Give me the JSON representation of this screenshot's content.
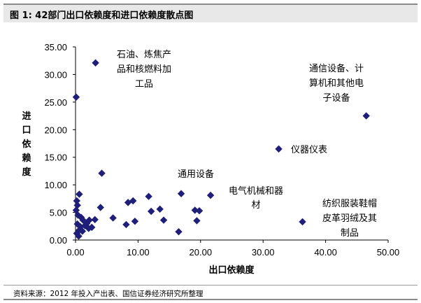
{
  "figure": {
    "title": "图 1:  42部门出口依赖度和进口依赖度散点图",
    "source": "资料来源：2012 年投入产出表、国信证券经济研究所整理"
  },
  "chart_data": {
    "type": "scatter",
    "title": "",
    "xlabel": "出口依赖度",
    "ylabel": "进口依赖度",
    "xlim": [
      0,
      50
    ],
    "ylim": [
      0,
      35
    ],
    "xticks": [
      "0.00",
      "10.00",
      "20.00",
      "30.00",
      "40.00",
      "50.00"
    ],
    "yticks": [
      "0.00",
      "5.00",
      "10.00",
      "15.00",
      "20.00",
      "25.00",
      "30.00",
      "35.00"
    ],
    "grid": false,
    "marker_color": "#1f1f7a",
    "series": [
      {
        "points": [
          [
            0.1,
            25.9
          ],
          [
            3.2,
            32.1
          ],
          [
            46.5,
            22.5
          ],
          [
            32.5,
            16.5
          ],
          [
            4.2,
            12.1
          ],
          [
            0.6,
            8.3
          ],
          [
            0.2,
            7.1
          ],
          [
            0.3,
            6.3
          ],
          [
            4.0,
            5.9
          ],
          [
            0.1,
            5.4
          ],
          [
            0.4,
            4.5
          ],
          [
            0.9,
            4.1
          ],
          [
            1.2,
            3.6
          ],
          [
            2.2,
            3.6
          ],
          [
            3.1,
            3.7
          ],
          [
            0.3,
            2.9
          ],
          [
            0.8,
            2.4
          ],
          [
            1.5,
            2.6
          ],
          [
            2.6,
            2.3
          ],
          [
            0.6,
            1.8
          ],
          [
            1.1,
            1.6
          ],
          [
            0.2,
            1.2
          ],
          [
            0.5,
            0.7
          ],
          [
            1.8,
            3.0
          ],
          [
            2.1,
            2.1
          ],
          [
            6.0,
            4.0
          ],
          [
            8.1,
            2.8
          ],
          [
            8.4,
            6.8
          ],
          [
            9.2,
            7.1
          ],
          [
            9.5,
            3.4
          ],
          [
            11.7,
            7.9
          ],
          [
            12.1,
            5.2
          ],
          [
            13.5,
            5.6
          ],
          [
            14.1,
            3.6
          ],
          [
            16.5,
            1.5
          ],
          [
            16.9,
            8.4
          ],
          [
            19.1,
            5.4
          ],
          [
            19.4,
            3.5
          ],
          [
            19.8,
            5.3
          ],
          [
            21.6,
            8.1
          ],
          [
            36.3,
            3.3
          ]
        ]
      }
    ],
    "annotations": [
      {
        "lines": [
          "石油、炼焦产",
          "品和核燃料加",
          "工品"
        ]
      },
      {
        "lines": [
          "通信设备、计",
          "算机和其他电",
          "子设备"
        ]
      },
      {
        "lines": [
          "仪器仪表"
        ]
      },
      {
        "lines": [
          "通用设备"
        ]
      },
      {
        "lines": [
          "电气机械和器",
          "材"
        ]
      },
      {
        "lines": [
          "纺织服装鞋帽",
          "皮革羽绒及其",
          "制品"
        ]
      }
    ]
  }
}
